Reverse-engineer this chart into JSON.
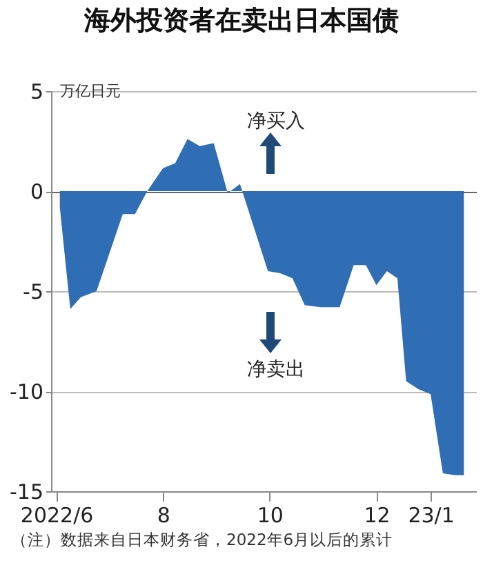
{
  "chart_data": {
    "type": "area",
    "title": "海外投资者在卖出日本国债",
    "ylabel": "万亿日元",
    "annotations": [
      "净买入",
      "净卖出",
      "（注）数据来自日本财务省，2022年6月以后的累计"
    ],
    "x": [
      "2022-06-03",
      "2022-06-09",
      "2022-06-15",
      "2022-06-24",
      "2022-07-09",
      "2022-07-16",
      "2022-07-23",
      "2022-08-01",
      "2022-08-08",
      "2022-08-15",
      "2022-08-22",
      "2022-08-30",
      "2022-09-07",
      "2022-09-14",
      "2022-09-30",
      "2022-10-07",
      "2022-10-14",
      "2022-10-21",
      "2022-10-30",
      "2022-11-10",
      "2022-11-18",
      "2022-11-25",
      "2022-12-01",
      "2022-12-07",
      "2022-12-13",
      "2022-12-18",
      "2022-12-25",
      "2023-01-01",
      "2023-01-08",
      "2023-01-15",
      "2023-01-20"
    ],
    "series": [
      {
        "color": "#2f6db5",
        "values": [
          -0.8,
          -5.9,
          -5.3,
          -5.0,
          -1.15,
          -1.15,
          0,
          1.15,
          1.4,
          2.6,
          2.25,
          2.4,
          -0.1,
          0.35,
          -4.0,
          -4.1,
          -4.35,
          -5.7,
          -5.8,
          -5.8,
          -3.7,
          -3.7,
          -4.7,
          -4.0,
          -4.35,
          -9.5,
          -9.9,
          -10.15,
          -14.1,
          -14.2,
          -14.2
        ]
      }
    ],
    "xlim": [
      "2022-05-29",
      "2023-01-27"
    ],
    "xticks": [
      {
        "value": "2022-06-01",
        "label": "2022/6"
      },
      {
        "value": "2022-08-01",
        "label": "8"
      },
      {
        "value": "2022-10-01",
        "label": "10"
      },
      {
        "value": "2022-12-01",
        "label": "12"
      },
      {
        "value": "2023-01-01",
        "label": "23/1"
      }
    ],
    "ylim": [
      -15,
      5
    ],
    "yticks": [
      -15,
      -10,
      -5,
      0,
      5
    ],
    "grid": "y"
  }
}
